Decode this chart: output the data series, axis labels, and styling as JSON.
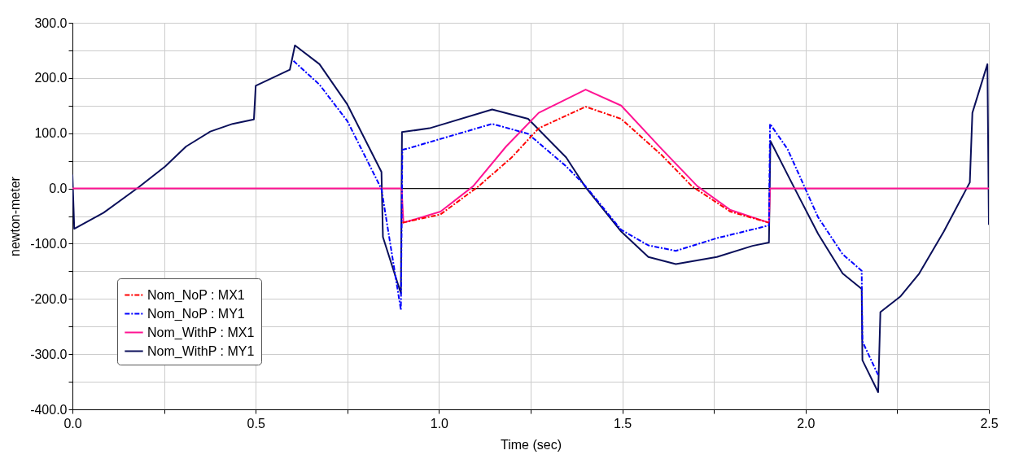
{
  "chart_data": {
    "type": "line",
    "xlabel": "Time (sec)",
    "ylabel": "newton-meter",
    "xlim": [
      0,
      2.5
    ],
    "ylim": [
      -400,
      300
    ],
    "xticks": [
      {
        "value": 0,
        "label": "0.0"
      },
      {
        "value": 0.25,
        "label": null
      },
      {
        "value": 0.5,
        "label": "0.5"
      },
      {
        "value": 0.75,
        "label": null
      },
      {
        "value": 1.0,
        "label": "1.0"
      },
      {
        "value": 1.25,
        "label": null
      },
      {
        "value": 1.5,
        "label": "1.5"
      },
      {
        "value": 1.75,
        "label": null
      },
      {
        "value": 2.0,
        "label": "2.0"
      },
      {
        "value": 2.25,
        "label": null
      },
      {
        "value": 2.5,
        "label": "2.5"
      }
    ],
    "yticks": [
      {
        "value": -400,
        "label": "-400.0"
      },
      {
        "value": -350,
        "label": null
      },
      {
        "value": -300,
        "label": "-300.0"
      },
      {
        "value": -250,
        "label": null
      },
      {
        "value": -200,
        "label": "-200.0"
      },
      {
        "value": -150,
        "label": null
      },
      {
        "value": -100,
        "label": "-100.0"
      },
      {
        "value": -50,
        "label": null
      },
      {
        "value": 0,
        "label": "0.0"
      },
      {
        "value": 50,
        "label": null
      },
      {
        "value": 100,
        "label": "100.0"
      },
      {
        "value": 150,
        "label": null
      },
      {
        "value": 200,
        "label": "200.0"
      },
      {
        "value": 250,
        "label": null
      },
      {
        "value": 300,
        "label": "300.0"
      }
    ],
    "grid": true,
    "legend": "bottom left",
    "ref_lines": [
      {
        "axis": "y",
        "value": 0,
        "color": "#000000",
        "line_style": "solid"
      }
    ],
    "series": [
      {
        "name": "Nom_NoP : MX1",
        "color": "#ff0000",
        "line_style": "dashed",
        "x": [
          0.9,
          1.004,
          1.108,
          1.198,
          1.272,
          1.4,
          1.497,
          1.608,
          1.69,
          1.795,
          1.9
        ],
        "values": [
          -62,
          -47,
          4,
          56,
          109,
          148,
          126,
          60,
          4,
          -42,
          -62
        ]
      },
      {
        "name": "Nom_NoP : MY1",
        "color": "#0000ff",
        "line_style": "dashed",
        "x": [
          0.603,
          0.674,
          0.75,
          0.843,
          0.896,
          0.9,
          0.918,
          1.145,
          1.243,
          1.347,
          1.4,
          1.497,
          1.571,
          1.646,
          1.758,
          1.9,
          1.903,
          1.951,
          2.034,
          2.101,
          2.153,
          2.155,
          2.198
        ],
        "values": [
          231,
          188,
          122,
          -1,
          -220,
          70,
          73,
          117,
          99,
          40,
          4,
          -75,
          -103,
          -113,
          -90,
          -67,
          117,
          71,
          -52,
          -119,
          -149,
          -277,
          -338
        ]
      },
      {
        "name": "Nom_WithP : MX1",
        "color": "#ff1493",
        "line_style": "solid",
        "x": [
          0,
          0.898,
          0.903,
          1.004,
          1.093,
          1.183,
          1.272,
          1.4,
          1.497,
          1.608,
          1.705,
          1.795,
          1.9,
          1.903,
          2.5
        ],
        "values": [
          0,
          0,
          -62,
          -42,
          4,
          76,
          137,
          179,
          150,
          71,
          4,
          -39,
          -62,
          0,
          0
        ]
      },
      {
        "name": "Nom_WithP : MY1",
        "color": "#0a0f5a",
        "line_style": "solid",
        "x": [
          0,
          0.005,
          0.085,
          0.18,
          0.253,
          0.31,
          0.376,
          0.437,
          0.495,
          0.5,
          0.593,
          0.607,
          0.674,
          0.75,
          0.843,
          0.847,
          0.896,
          0.899,
          0.974,
          1.145,
          1.243,
          1.347,
          1.4,
          1.497,
          1.571,
          1.646,
          1.758,
          1.855,
          1.9,
          1.904,
          1.967,
          2.034,
          2.101,
          2.153,
          2.155,
          2.198,
          2.204,
          2.258,
          2.31,
          2.377,
          2.448,
          2.455,
          2.496,
          2.5
        ],
        "values": [
          25,
          -73,
          -44,
          2,
          40,
          76,
          103,
          117,
          125,
          186,
          215,
          259,
          225,
          152,
          30,
          -88,
          -190,
          102,
          109,
          143,
          126,
          56,
          2,
          -78,
          -124,
          -137,
          -124,
          -104,
          -98,
          86,
          4,
          -82,
          -154,
          -182,
          -311,
          -369,
          -224,
          -196,
          -154,
          -78,
          11,
          137,
          225,
          -66
        ]
      }
    ]
  }
}
